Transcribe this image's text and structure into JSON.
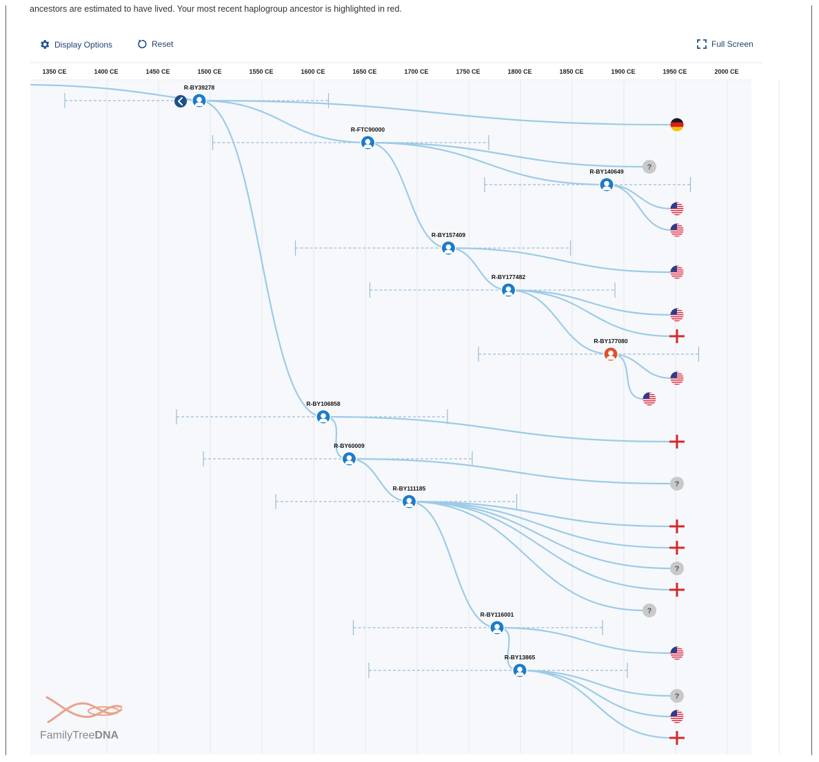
{
  "intro_text": "ancestors are estimated to have lived. Your most recent haplogroup ancestor is highlighted in red.",
  "toolbar": {
    "display_options_label": "Display Options",
    "reset_label": "Reset",
    "full_screen_label": "Full Screen"
  },
  "colors": {
    "branch": "#9ccbe6",
    "node": "#1f7bc8",
    "highlight_node": "#d9552b",
    "range": "#9bbbd4",
    "unknown": "#c9c9c9",
    "unknown_text": "#555555",
    "cross": "#d62828",
    "back_button": "#1f4f8a"
  },
  "chart_data": {
    "type": "table",
    "axis": {
      "unit": "CE",
      "ticks": [
        "1350 CE",
        "1400 CE",
        "1450 CE",
        "1500 CE",
        "1550 CE",
        "1600 CE",
        "1650 CE",
        "1700 CE",
        "1750 CE",
        "1800 CE",
        "1850 CE",
        "1900 CE",
        "1950 CE",
        "2000 CE"
      ],
      "tick_years": [
        1350,
        1400,
        1450,
        1500,
        1550,
        1600,
        1650,
        1700,
        1750,
        1800,
        1850,
        1900,
        1950,
        2000
      ],
      "range": [
        1325,
        2025
      ]
    },
    "nodes": [
      {
        "id": "R-BY39278",
        "label": "R-BY39278",
        "year": 1490,
        "range": [
          1360,
          1615
        ],
        "parent": null,
        "highlight": false
      },
      {
        "id": "R-FTC90000",
        "label": "R-FTC90000",
        "year": 1653,
        "range": [
          1503,
          1770
        ],
        "parent": "R-BY39278",
        "highlight": false
      },
      {
        "id": "R-BY140649",
        "label": "R-BY140649",
        "year": 1884,
        "range": [
          1766,
          1965
        ],
        "parent": "R-FTC90000",
        "highlight": false
      },
      {
        "id": "R-BY157409",
        "label": "R-BY157409",
        "year": 1731,
        "range": [
          1583,
          1849
        ],
        "parent": "R-FTC90000",
        "highlight": false
      },
      {
        "id": "R-BY177482",
        "label": "R-BY177482",
        "year": 1789,
        "range": [
          1655,
          1892
        ],
        "parent": "R-BY157409",
        "highlight": false
      },
      {
        "id": "R-BY177080",
        "label": "R-BY177080",
        "year": 1888,
        "range": [
          1760,
          1973
        ],
        "parent": "R-BY177482",
        "highlight": true
      },
      {
        "id": "R-BY106858",
        "label": "R-BY106858",
        "year": 1610,
        "range": [
          1468,
          1730
        ],
        "parent": "R-BY39278",
        "highlight": false
      },
      {
        "id": "R-BY60009",
        "label": "R-BY60009",
        "year": 1635,
        "range": [
          1494,
          1754
        ],
        "parent": "R-BY106858",
        "highlight": false
      },
      {
        "id": "R-BY111185",
        "label": "R-BY111185",
        "year": 1693,
        "range": [
          1564,
          1797
        ],
        "parent": "R-BY60009",
        "highlight": false
      },
      {
        "id": "R-BY116001",
        "label": "R-BY116001",
        "year": 1778,
        "range": [
          1639,
          1880
        ],
        "parent": "R-BY111185",
        "highlight": false
      },
      {
        "id": "R-BY13865",
        "label": "R-BY13865",
        "year": 1800,
        "range": [
          1654,
          1904
        ],
        "parent": "R-BY116001",
        "highlight": false
      }
    ],
    "leaves": [
      {
        "parent": "R-BY39278",
        "type": "flag-de"
      },
      {
        "parent": "R-FTC90000",
        "type": "unknown"
      },
      {
        "parent": "R-BY140649",
        "type": "flag-us"
      },
      {
        "parent": "R-BY140649",
        "type": "flag-us"
      },
      {
        "parent": "R-BY157409",
        "type": "flag-us"
      },
      {
        "parent": "R-BY177482",
        "type": "flag-us"
      },
      {
        "parent": "R-BY177482",
        "type": "cross"
      },
      {
        "parent": "R-BY177080",
        "type": "flag-us"
      },
      {
        "parent": "R-BY177080",
        "type": "flag-us"
      },
      {
        "parent": "R-BY106858",
        "type": "cross"
      },
      {
        "parent": "R-BY60009",
        "type": "unknown"
      },
      {
        "parent": "R-BY111185",
        "type": "cross"
      },
      {
        "parent": "R-BY111185",
        "type": "cross"
      },
      {
        "parent": "R-BY111185",
        "type": "unknown"
      },
      {
        "parent": "R-BY111185",
        "type": "cross"
      },
      {
        "parent": "R-BY111185",
        "type": "unknown"
      },
      {
        "parent": "R-BY116001",
        "type": "flag-us"
      },
      {
        "parent": "R-BY13865",
        "type": "unknown"
      },
      {
        "parent": "R-BY13865",
        "type": "flag-us"
      },
      {
        "parent": "R-BY13865",
        "type": "cross"
      }
    ]
  },
  "logo": {
    "text_regular": "FamilyTree",
    "text_bold": "DNA"
  }
}
